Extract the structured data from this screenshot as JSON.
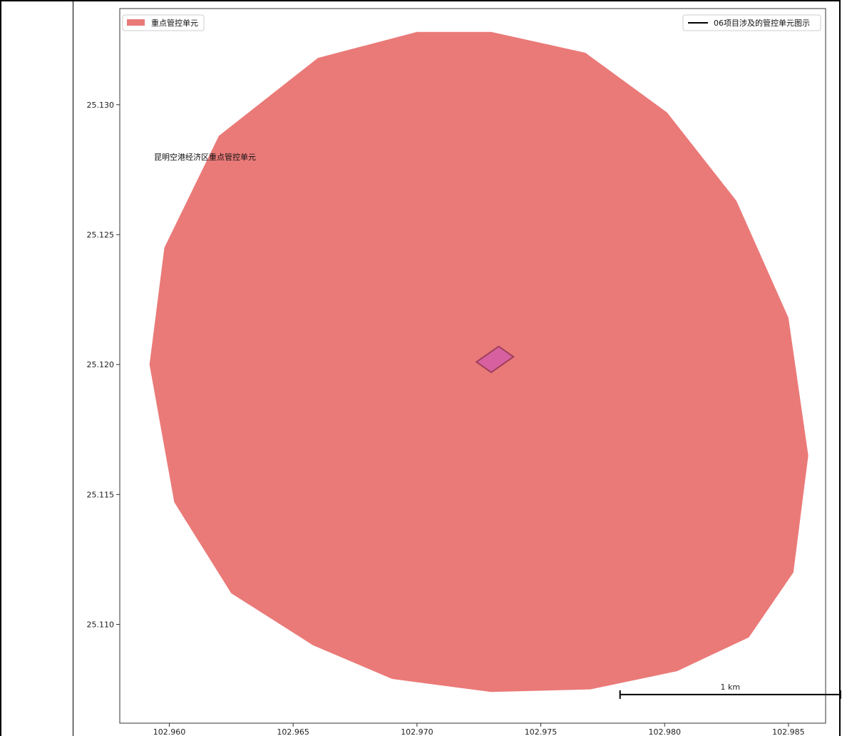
{
  "map": {
    "legend_left": {
      "label": "重点管控单元",
      "color": "#e87a78"
    },
    "legend_right": {
      "label": "06项目涉及的管控单元图示",
      "color": "#000000"
    },
    "annotation": "昆明空港经济区重点管控单元",
    "scalebar_label": "1 km",
    "zone_color": "#ea7a78",
    "project_color": "#d760a0",
    "project_edge_color": "#a0405a"
  },
  "chart_data": {
    "type": "map",
    "xlim": [
      102.958,
      102.9865
    ],
    "ylim": [
      25.1062,
      25.1337
    ],
    "x_ticks": [
      "102.960",
      "102.965",
      "102.970",
      "102.975",
      "102.980",
      "102.985"
    ],
    "y_ticks": [
      "25.110",
      "25.115",
      "25.120",
      "25.125",
      "25.130"
    ],
    "x_tick_values": [
      102.96,
      102.965,
      102.97,
      102.975,
      102.98,
      102.985
    ],
    "y_tick_values": [
      25.11,
      25.115,
      25.12,
      25.125,
      25.13
    ],
    "zone_polygon": [
      [
        102.973,
        25.1328
      ],
      [
        102.9768,
        25.132
      ],
      [
        102.9801,
        25.1297
      ],
      [
        102.9829,
        25.1263
      ],
      [
        102.985,
        25.1218
      ],
      [
        102.9858,
        25.1165
      ],
      [
        102.9852,
        25.112
      ],
      [
        102.9834,
        25.1095
      ],
      [
        102.9805,
        25.1082
      ],
      [
        102.977,
        25.1075
      ],
      [
        102.973,
        25.1074
      ],
      [
        102.969,
        25.1079
      ],
      [
        102.9658,
        25.1092
      ],
      [
        102.9625,
        25.1112
      ],
      [
        102.9602,
        25.1147
      ],
      [
        102.9592,
        25.12
      ],
      [
        102.9598,
        25.1245
      ],
      [
        102.962,
        25.1288
      ],
      [
        102.966,
        25.1318
      ],
      [
        102.97,
        25.1328
      ]
    ],
    "project_polygon": [
      [
        102.973,
        25.1197
      ],
      [
        102.9739,
        25.1203
      ],
      [
        102.9733,
        25.1207
      ],
      [
        102.9724,
        25.1201
      ]
    ],
    "scalebar": {
      "x_start": 102.9782,
      "x_end": 102.9871,
      "y": 25.1073
    }
  }
}
